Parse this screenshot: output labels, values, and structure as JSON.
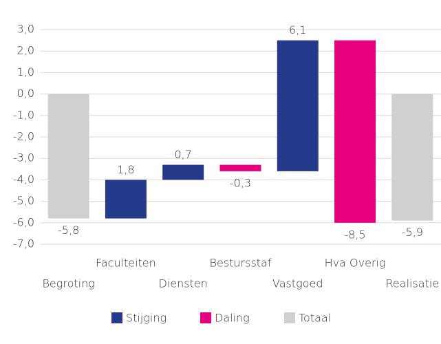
{
  "chart_data": {
    "type": "waterfall",
    "categories": [
      "Begroting",
      "Faculteiten",
      "Diensten",
      "Bestursstaf",
      "Vastgoed",
      "Hva Overig",
      "Realisatie"
    ],
    "series": [
      {
        "name": "Stijging",
        "color": "#263a8c",
        "values": [
          null,
          1.8,
          0.7,
          null,
          6.1,
          null,
          null
        ],
        "value_labels": [
          null,
          "1,8",
          "0,7",
          null,
          "6,1",
          null,
          null
        ]
      },
      {
        "name": "Daling",
        "color": "#e6007e",
        "values": [
          null,
          null,
          null,
          -0.3,
          null,
          -8.5,
          null
        ],
        "value_labels": [
          null,
          null,
          null,
          "-0,3",
          null,
          "-8,5",
          null
        ]
      },
      {
        "name": "Totaal",
        "color": "#d0d0d3",
        "total": true,
        "values": [
          -5.8,
          null,
          null,
          null,
          null,
          null,
          -5.9
        ],
        "value_labels": [
          "-5,8",
          null,
          null,
          null,
          null,
          null,
          "-5,9"
        ]
      }
    ],
    "ylim": [
      -7,
      3
    ],
    "yticks": [
      {
        "value": -7,
        "label": "-7,0"
      },
      {
        "value": -6,
        "label": "-6,0"
      },
      {
        "value": -5,
        "label": "-5,0"
      },
      {
        "value": -4,
        "label": "-4,0"
      },
      {
        "value": -3,
        "label": "-3,0"
      },
      {
        "value": -2,
        "label": "-2,0"
      },
      {
        "value": -1,
        "label": "-1,0"
      },
      {
        "value": 0,
        "label": "0,0"
      },
      {
        "value": 1,
        "label": "1,0"
      },
      {
        "value": 2,
        "label": "2,0"
      },
      {
        "value": 3,
        "label": "3,0"
      }
    ],
    "grid": true,
    "legend": "bottom"
  }
}
